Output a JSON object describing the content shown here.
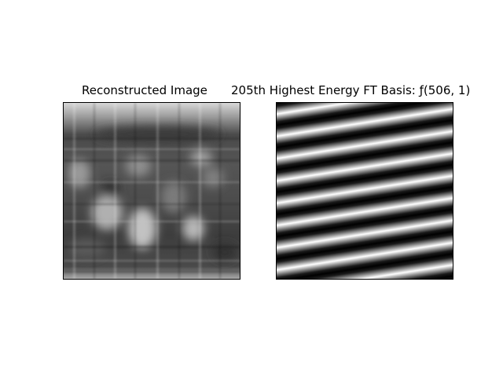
{
  "figure": {
    "left_title": "Reconstructed Image",
    "right_title": "205th Highest Energy FT Basis: ƒ(506, 1)"
  },
  "colors": {
    "background": "#ffffff",
    "axes_border": "#000000",
    "colormap": "gray"
  }
}
